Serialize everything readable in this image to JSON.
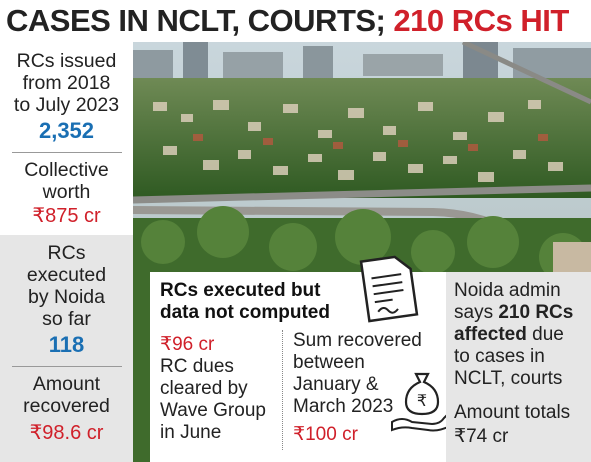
{
  "headline": {
    "dark": "CASES IN NCLT, COURTS;",
    "red": "210 RCs HIT"
  },
  "sidebar": {
    "issued_label_1": "RCs issued",
    "issued_label_2": "from 2018",
    "issued_label_3": "to July 2023",
    "issued_value": "2,352",
    "worth_label_1": "Collective",
    "worth_label_2": "worth",
    "worth_value": "₹875 cr",
    "executed_label_1": "RCs",
    "executed_label_2": "executed",
    "executed_label_3": "by Noida",
    "executed_label_4": "so far",
    "executed_value": "118",
    "amount_label_1": "Amount",
    "amount_label_2": "recovered",
    "amount_value": "₹98.6 cr"
  },
  "panel": {
    "title_1": "RCs executed but",
    "title_2": "data not computed",
    "col1_value": "₹96 cr",
    "col1_line1": "RC dues",
    "col1_line2": "cleared by",
    "col1_line3": "Wave Group",
    "col1_line4": "in June",
    "col2_line1": "Sum recovered",
    "col2_line2": "between",
    "col2_line3": "January &",
    "col2_line4": "March 2023",
    "col2_value": "₹100 cr",
    "doc_icon": "document-icon",
    "hand_icon": "money-hand-icon"
  },
  "right": {
    "line1": "Noida admin",
    "line2_pre": "says ",
    "line2_bold": "210 RCs",
    "line3_bold": "affected",
    "line3_post": " due",
    "line4": "to cases in",
    "line5": "NCLT, courts",
    "total_label": "Amount totals",
    "total_value": "₹74 cr"
  },
  "colors": {
    "red": "#d0202a",
    "blue": "#1a6fb3",
    "grey_box": "#e6e6e6"
  }
}
